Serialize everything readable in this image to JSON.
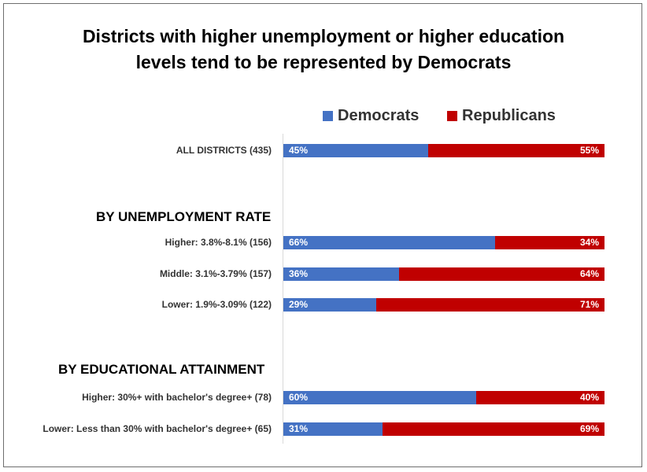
{
  "chart_data": {
    "type": "bar",
    "orientation": "horizontal",
    "stacked": true,
    "title": "Districts with higher unemployment or higher education levels tend to be represented by Democrats",
    "title_lines": [
      "Districts with higher unemployment or higher education",
      "levels tend to be represented by Democrats"
    ],
    "legend": [
      {
        "name": "Democrats",
        "color": "#4472c4"
      },
      {
        "name": "Republicans",
        "color": "#c00000"
      }
    ],
    "sections": [
      {
        "heading": "",
        "rows": [
          {
            "label": "ALL DISTRICTS (435)",
            "dem": 45,
            "rep": 55
          }
        ]
      },
      {
        "heading": "BY UNEMPLOYMENT RATE",
        "rows": [
          {
            "label": "Higher: 3.8%-8.1% (156)",
            "dem": 66,
            "rep": 34
          },
          {
            "label": "Middle: 3.1%-3.79% (157)",
            "dem": 36,
            "rep": 64
          },
          {
            "label": "Lower: 1.9%-3.09% (122)",
            "dem": 29,
            "rep": 71
          }
        ]
      },
      {
        "heading": "BY EDUCATIONAL ATTAINMENT",
        "rows": [
          {
            "label": "Higher: 30%+ with bachelor's degree+ (78)",
            "dem": 60,
            "rep": 40
          },
          {
            "label": "Lower: Less than 30% with bachelor's degree+ (65)",
            "dem": 31,
            "rep": 69
          }
        ]
      }
    ],
    "xlim": [
      0,
      100
    ],
    "value_suffix": "%"
  }
}
